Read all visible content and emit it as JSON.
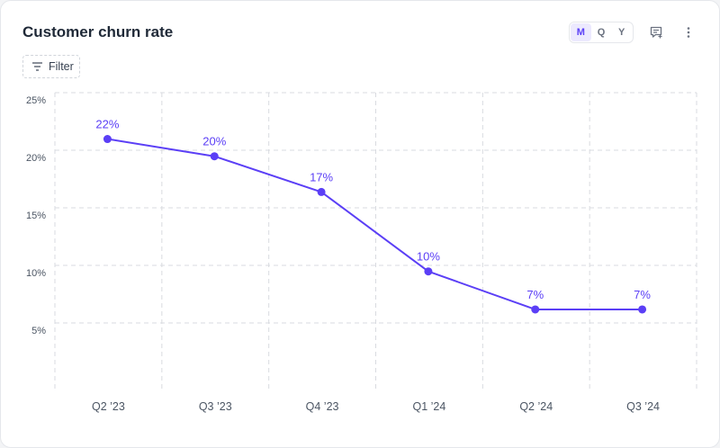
{
  "header": {
    "title": "Customer churn rate",
    "periods": [
      "M",
      "Q",
      "Y"
    ],
    "active_period": "M",
    "comment_icon": "comment-add-icon",
    "menu_icon": "more-vertical-icon"
  },
  "toolbar": {
    "filter_label": "Filter",
    "filter_icon": "filter-lines-icon"
  },
  "colors": {
    "accent": "#5b3ff6",
    "grid": "#d9dbe0",
    "tick_text": "#4b5563"
  },
  "chart_data": {
    "type": "line",
    "title": "Customer churn rate",
    "categories": [
      "Q2 ’23",
      "Q3 ’23",
      "Q4 ’23",
      "Q1 ’24",
      "Q2 ’24",
      "Q3 ’24"
    ],
    "series": [
      {
        "values": [
          21.6,
          20.1,
          17.0,
          10.1,
          6.8,
          6.8
        ],
        "labels": [
          "22%",
          "20%",
          "17%",
          "10%",
          "7%",
          "7%"
        ]
      }
    ],
    "yticks": [
      5,
      10,
      15,
      20,
      25
    ],
    "ytick_labels": [
      "5%",
      "10%",
      "15%",
      "20%",
      "25%"
    ],
    "ylim": [
      0,
      25
    ],
    "xlabel": "",
    "ylabel": "",
    "grid": true,
    "legend": "none"
  }
}
